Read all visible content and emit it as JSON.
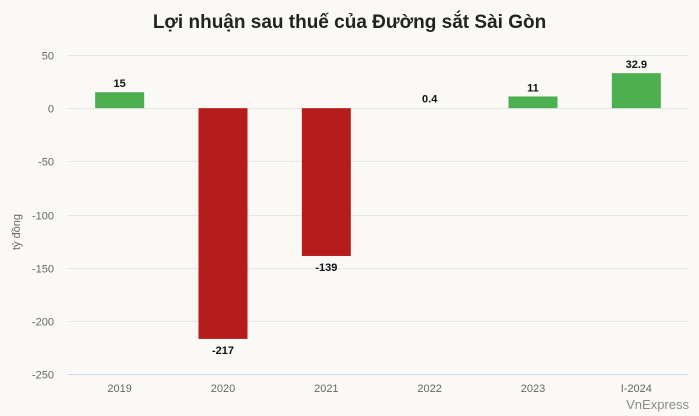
{
  "title": "Lợi nhuận sau thuế của Đường sắt Sài Gòn",
  "source": "VnExpress",
  "colors": {
    "positive": "#4caf50",
    "negative": "#b71c1c",
    "grid": "#e6e6e6",
    "axis": "#ccd6eb",
    "tick_text": "#666666",
    "label_text": "#111111"
  },
  "chart_data": {
    "type": "bar",
    "title": "Lợi nhuận sau thuế của Đường sắt Sài Gòn",
    "xlabel": "",
    "ylabel": "tỷ đồng",
    "categories": [
      "2019",
      "2020",
      "2021",
      "2022",
      "2023",
      "I-2024"
    ],
    "values": [
      15,
      -217,
      -139,
      0.4,
      11,
      32.9
    ],
    "data_labels": [
      "15",
      "-217",
      "-139",
      "0.4",
      "11",
      "32.9"
    ],
    "ylim": [
      -250,
      50
    ],
    "yticks": [
      50,
      0,
      -50,
      -100,
      -150,
      -200,
      -250
    ],
    "grid": true,
    "legend": null
  }
}
